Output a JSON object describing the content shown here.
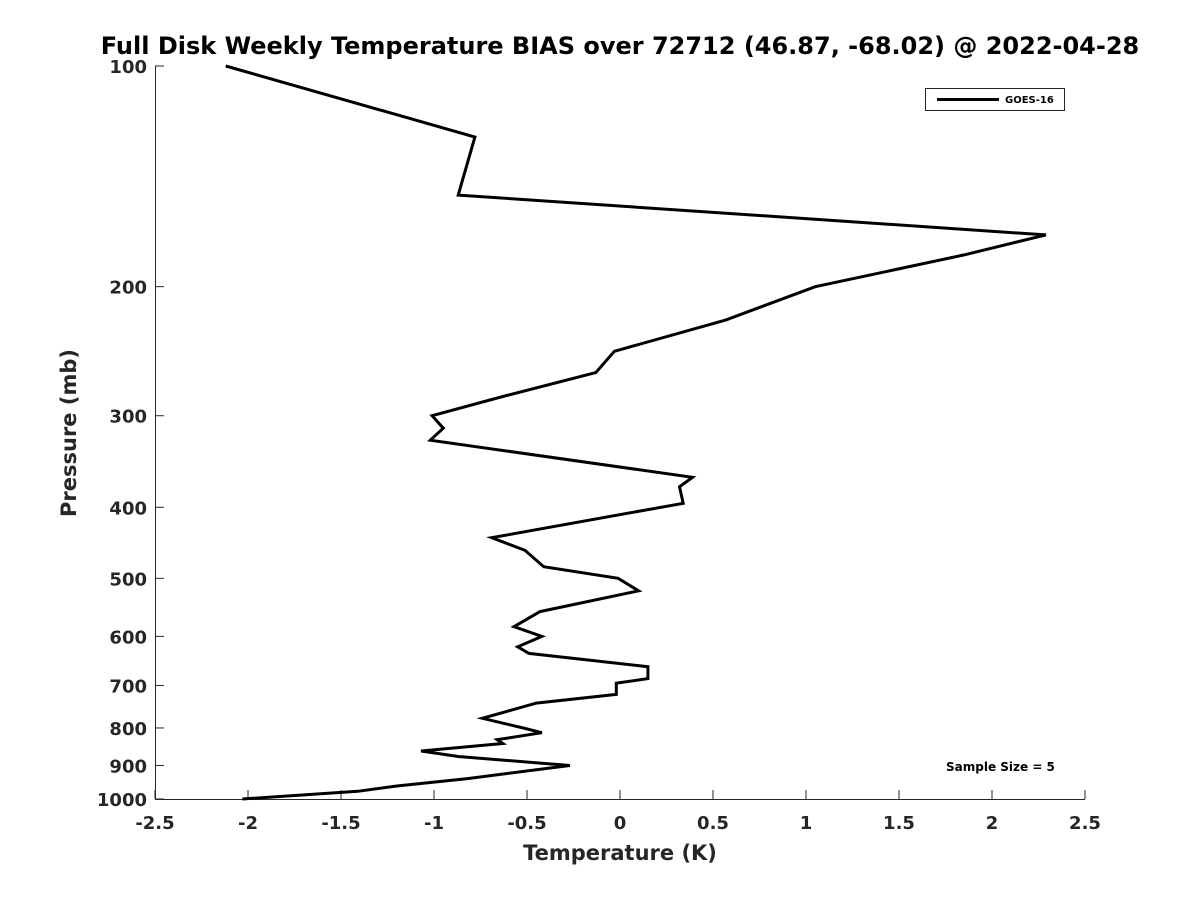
{
  "chart_data": {
    "type": "line",
    "title": "Full Disk Weekly Temperature BIAS over 72712 (46.87, -68.02) @ 2022-04-28",
    "xlabel": "Temperature (K)",
    "ylabel": "Pressure (mb)",
    "xlim": [
      -2.5,
      2.5
    ],
    "ylim": [
      100,
      1000
    ],
    "y_scale": "log",
    "y_reversed": true,
    "x_ticks": [
      "-2.5",
      "-2",
      "-1.5",
      "-1",
      "-0.5",
      "0",
      "0.5",
      "1",
      "1.5",
      "2",
      "2.5"
    ],
    "x_tick_values": [
      -2.5,
      -2,
      -1.5,
      -1,
      -0.5,
      0,
      0.5,
      1,
      1.5,
      2,
      2.5
    ],
    "y_ticks": [
      "100",
      "200",
      "300",
      "400",
      "500",
      "600",
      "700",
      "800",
      "900",
      "1000"
    ],
    "y_tick_values": [
      100,
      200,
      300,
      400,
      500,
      600,
      700,
      800,
      900,
      1000
    ],
    "grid": false,
    "legend_position": "top-right",
    "series": [
      {
        "name": "GOES-16",
        "color": "#000000",
        "points": [
          {
            "t": -2.12,
            "p": 100
          },
          {
            "t": -0.78,
            "p": 125
          },
          {
            "t": -0.87,
            "p": 150
          },
          {
            "t": 2.29,
            "p": 170
          },
          {
            "t": 1.85,
            "p": 181
          },
          {
            "t": 1.05,
            "p": 200
          },
          {
            "t": 0.57,
            "p": 222
          },
          {
            "t": -0.03,
            "p": 245
          },
          {
            "t": -0.13,
            "p": 262
          },
          {
            "t": -0.62,
            "p": 282
          },
          {
            "t": -1.01,
            "p": 300
          },
          {
            "t": -0.95,
            "p": 312
          },
          {
            "t": -1.02,
            "p": 324
          },
          {
            "t": 0.39,
            "p": 364
          },
          {
            "t": 0.32,
            "p": 375
          },
          {
            "t": 0.34,
            "p": 395
          },
          {
            "t": -0.69,
            "p": 440
          },
          {
            "t": -0.51,
            "p": 458
          },
          {
            "t": -0.41,
            "p": 482
          },
          {
            "t": -0.01,
            "p": 500
          },
          {
            "t": 0.1,
            "p": 520
          },
          {
            "t": -0.43,
            "p": 555
          },
          {
            "t": -0.57,
            "p": 582
          },
          {
            "t": -0.42,
            "p": 600
          },
          {
            "t": -0.55,
            "p": 620
          },
          {
            "t": -0.49,
            "p": 633
          },
          {
            "t": 0.15,
            "p": 660
          },
          {
            "t": 0.15,
            "p": 685
          },
          {
            "t": -0.02,
            "p": 695
          },
          {
            "t": -0.02,
            "p": 720
          },
          {
            "t": -0.45,
            "p": 740
          },
          {
            "t": -0.74,
            "p": 776
          },
          {
            "t": -0.52,
            "p": 800
          },
          {
            "t": -0.42,
            "p": 812
          },
          {
            "t": -0.66,
            "p": 830
          },
          {
            "t": -0.63,
            "p": 840
          },
          {
            "t": -1.07,
            "p": 860
          },
          {
            "t": -0.87,
            "p": 875
          },
          {
            "t": -0.27,
            "p": 900
          },
          {
            "t": -0.82,
            "p": 938
          },
          {
            "t": -1.2,
            "p": 960
          },
          {
            "t": -1.41,
            "p": 976
          },
          {
            "t": -2.03,
            "p": 1000
          }
        ]
      }
    ],
    "annotations": [
      "Sample Size = 5"
    ]
  }
}
